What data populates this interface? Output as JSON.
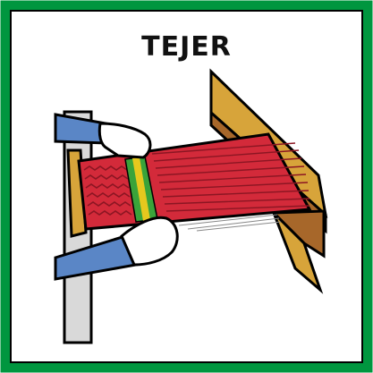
{
  "card": {
    "title": "TEJER",
    "border_color": "#00963f",
    "illustration": "loom-weaving-illustration"
  },
  "colors": {
    "weave_red": "#d32a3a",
    "weave_dark": "#8c1623",
    "stripe_green": "#3aa33a",
    "stripe_yellow": "#e6c81e",
    "wood": "#d7a43a",
    "wood_dark": "#a7672a",
    "sleeve": "#5a86c6",
    "skin": "#ffffff"
  }
}
